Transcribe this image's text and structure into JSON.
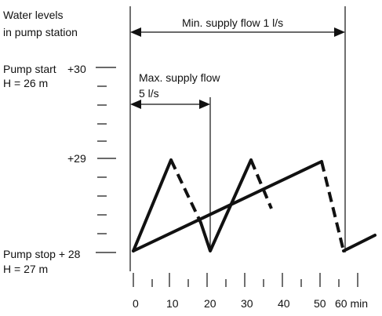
{
  "diagram": {
    "title_line1": "Water levels",
    "title_line2": "in pump station",
    "pump_start_line1": "Pump start",
    "pump_start_level": "+30",
    "pump_start_line2": "H = 26 m",
    "level_29": "+29",
    "pump_stop_line1": "Pump stop + 28",
    "pump_stop_line2": "H = 27 m",
    "min_supply_label": "Min. supply flow 1 l/s",
    "max_supply_label_line1": "Max. supply flow",
    "max_supply_label_line2": "5 l/s",
    "time_ticks": [
      "0",
      "10",
      "20",
      "30",
      "40",
      "50",
      "60 min"
    ]
  }
}
